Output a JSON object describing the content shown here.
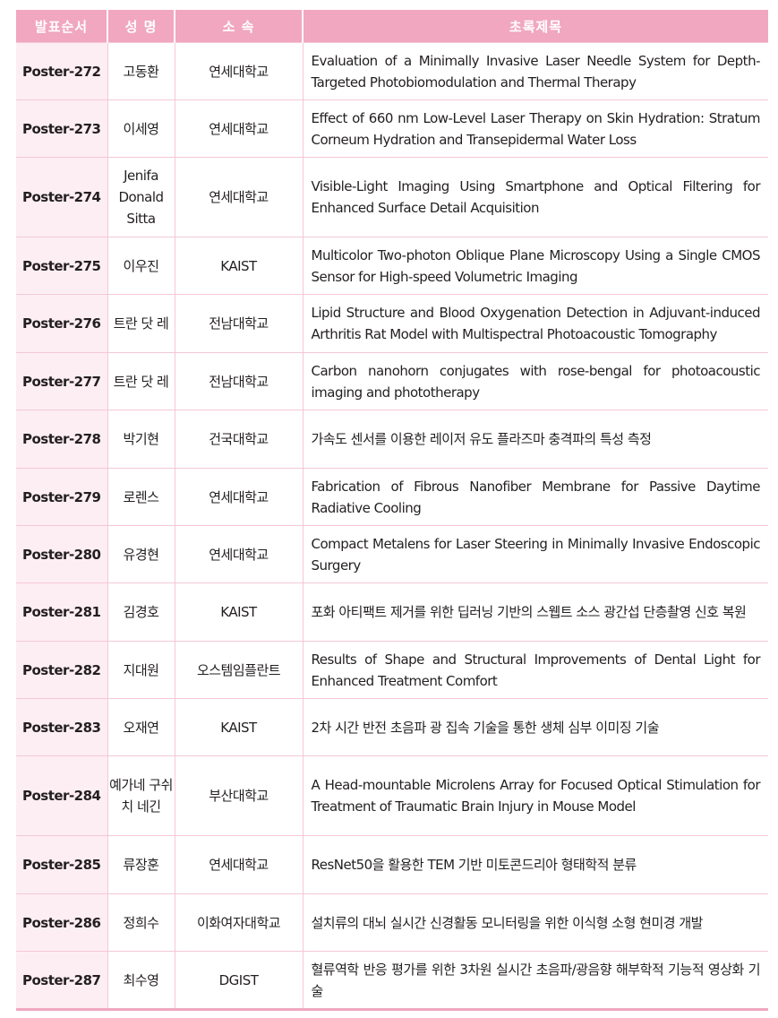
{
  "header": {
    "order": "발표순서",
    "name": "성 명",
    "affiliation": "소 속",
    "title": "초록제목"
  },
  "rows": [
    {
      "id": "Poster-272",
      "name": "고동환",
      "aff": "연세대학교",
      "title": "Evaluation of a Minimally Invasive Laser Needle System for Depth-Targeted Photobiomodulation and Thermal Therapy"
    },
    {
      "id": "Poster-273",
      "name": "이세영",
      "aff": "연세대학교",
      "title": "Effect of 660 nm Low-Level Laser Therapy on Skin Hydration: Stratum Corneum Hydration and Transepidermal Water Loss"
    },
    {
      "id": "Poster-274",
      "name": "Jenifa Donald Sitta",
      "aff": "연세대학교",
      "title": "Visible-Light Imaging Using Smartphone and Optical Filtering for Enhanced Surface Detail Acquisition"
    },
    {
      "id": "Poster-275",
      "name": "이우진",
      "aff": "KAIST",
      "title": "Multicolor Two-photon Oblique Plane Microscopy Using a Single CMOS Sensor for High-speed Volumetric Imaging"
    },
    {
      "id": "Poster-276",
      "name": "트란 닷 레",
      "aff": "전남대학교",
      "title": "Lipid Structure and Blood Oxygenation Detection in Adjuvant-induced Arthritis Rat Model with Multispectral Photoacoustic Tomography"
    },
    {
      "id": "Poster-277",
      "name": "트란 닷 레",
      "aff": "전남대학교",
      "title": "Carbon nanohorn conjugates with rose-bengal for photoacoustic imaging and phototherapy"
    },
    {
      "id": "Poster-278",
      "name": "박기현",
      "aff": "건국대학교",
      "title": "가속도 센서를 이용한 레이저 유도 플라즈마 충격파의 특성 측정"
    },
    {
      "id": "Poster-279",
      "name": "로렌스",
      "aff": "연세대학교",
      "title": "Fabrication of Fibrous Nanofiber Membrane for Passive Daytime Radiative Cooling"
    },
    {
      "id": "Poster-280",
      "name": "유경현",
      "aff": "연세대학교",
      "title": "Compact Metalens for Laser Steering in Minimally Invasive Endoscopic Surgery"
    },
    {
      "id": "Poster-281",
      "name": "김경호",
      "aff": "KAIST",
      "title": "포화 아티팩트 제거를 위한 딥러닝 기반의 스웹트 소스 광간섭 단층촬영 신호 복원"
    },
    {
      "id": "Poster-282",
      "name": "지대원",
      "aff": "오스템임플란트",
      "title": "Results of Shape and Structural Improvements of Dental Light for Enhanced Treatment Comfort"
    },
    {
      "id": "Poster-283",
      "name": "오재연",
      "aff": "KAIST",
      "title": "2차 시간 반전 초음파 광 집속 기술을 통한 생체 심부 이미징 기술"
    },
    {
      "id": "Poster-284",
      "name": "예가네 구쉬치 네긴",
      "aff": "부산대학교",
      "title": "A Head-mountable Microlens Array for Focused Optical Stimulation for Treatment of Traumatic Brain Injury in Mouse Model"
    },
    {
      "id": "Poster-285",
      "name": "류장훈",
      "aff": "연세대학교",
      "title": "ResNet50을 활용한 TEM 기반 미토콘드리아 형태학적 분류"
    },
    {
      "id": "Poster-286",
      "name": "정희수",
      "aff": "이화여자대학교",
      "title": "설치류의 대뇌 실시간 신경활동 모니터링을 위한 이식형 소형 현미경 개발"
    },
    {
      "id": "Poster-287",
      "name": "최수영",
      "aff": "DGIST",
      "title": "혈류역학 반응 평가를 위한 3차원 실시간 초음파/광음향 해부학적 기능적 영상화 기술"
    }
  ]
}
